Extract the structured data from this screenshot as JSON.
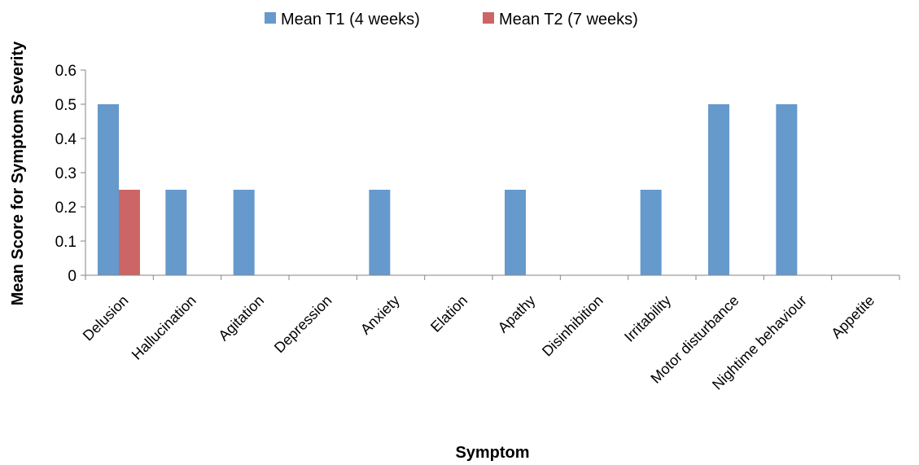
{
  "chart_data": {
    "type": "bar",
    "title": "",
    "xlabel": "Symptom",
    "ylabel": "Mean Score for Symptom Severity",
    "ylim": [
      0,
      0.6
    ],
    "yticks": [
      "0",
      "0.1",
      "0.2",
      "0.3",
      "0.4",
      "0.5",
      "0.6"
    ],
    "grid": false,
    "legend_position": "top",
    "categories": [
      "Delusion",
      "Hallucination",
      "Agitation",
      "Depression",
      "Anxiety",
      "Elation",
      "Apathy",
      "Disinhibition",
      "Irritability",
      "Motor disturbance",
      "Nightime behaviour",
      "Appetite"
    ],
    "series": [
      {
        "name": "Mean T1 (4 weeks)",
        "color": "#6699cc",
        "values": [
          0.5,
          0.25,
          0.25,
          0,
          0.25,
          0,
          0.25,
          0,
          0.25,
          0.5,
          0.5,
          0
        ]
      },
      {
        "name": "Mean T2 (7 weeks)",
        "color": "#cc6666",
        "values": [
          0.25,
          0,
          0,
          0,
          0,
          0,
          0,
          0,
          0,
          0,
          0,
          0
        ]
      }
    ]
  }
}
